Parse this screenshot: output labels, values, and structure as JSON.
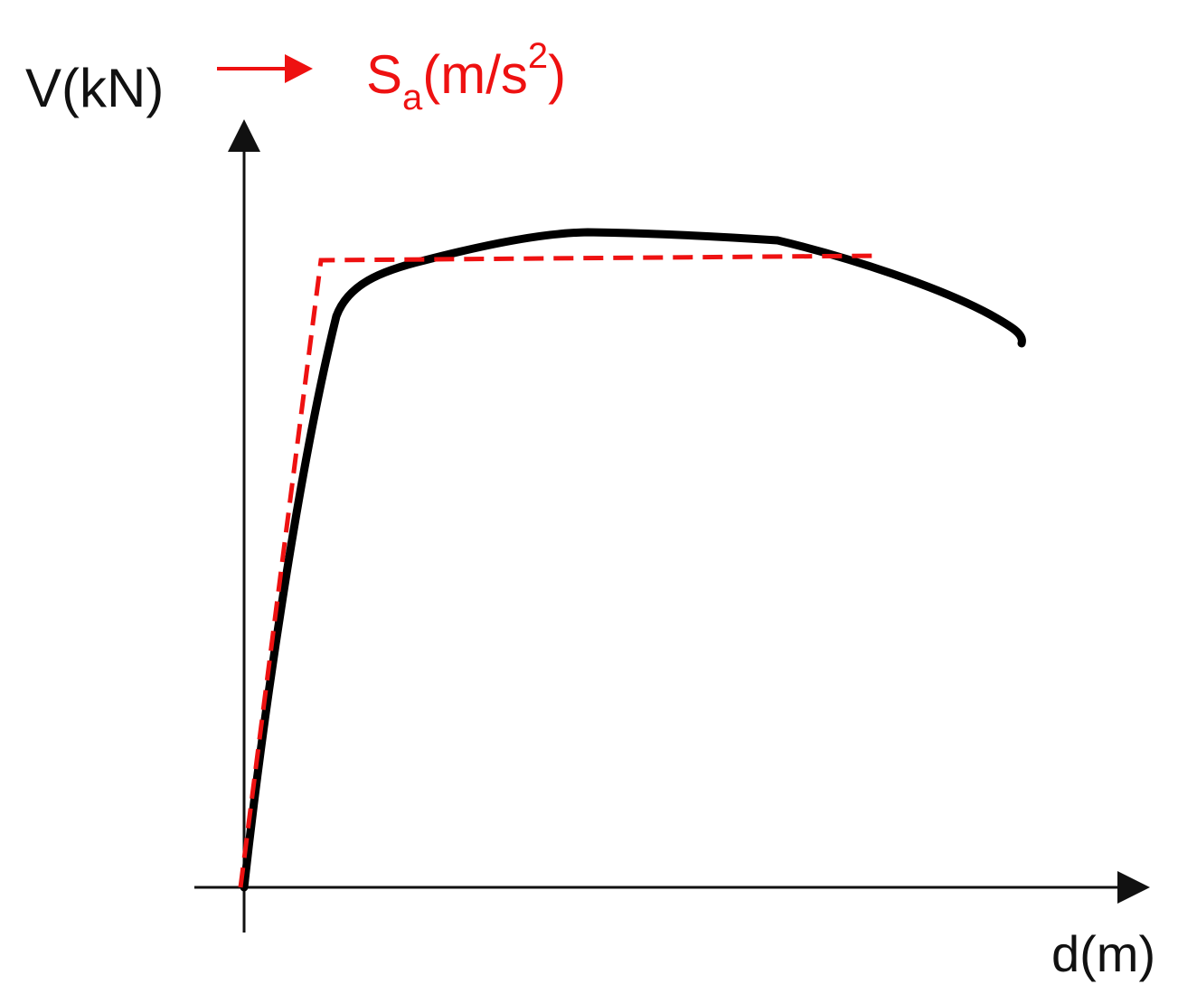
{
  "labels": {
    "y_axis": "V(kN)",
    "x_axis": "d(m)",
    "transformed_axis": {
      "base": "S",
      "subscript": "a",
      "unit": "(m/s",
      "superscript": "2",
      "close": ")"
    }
  }
}
